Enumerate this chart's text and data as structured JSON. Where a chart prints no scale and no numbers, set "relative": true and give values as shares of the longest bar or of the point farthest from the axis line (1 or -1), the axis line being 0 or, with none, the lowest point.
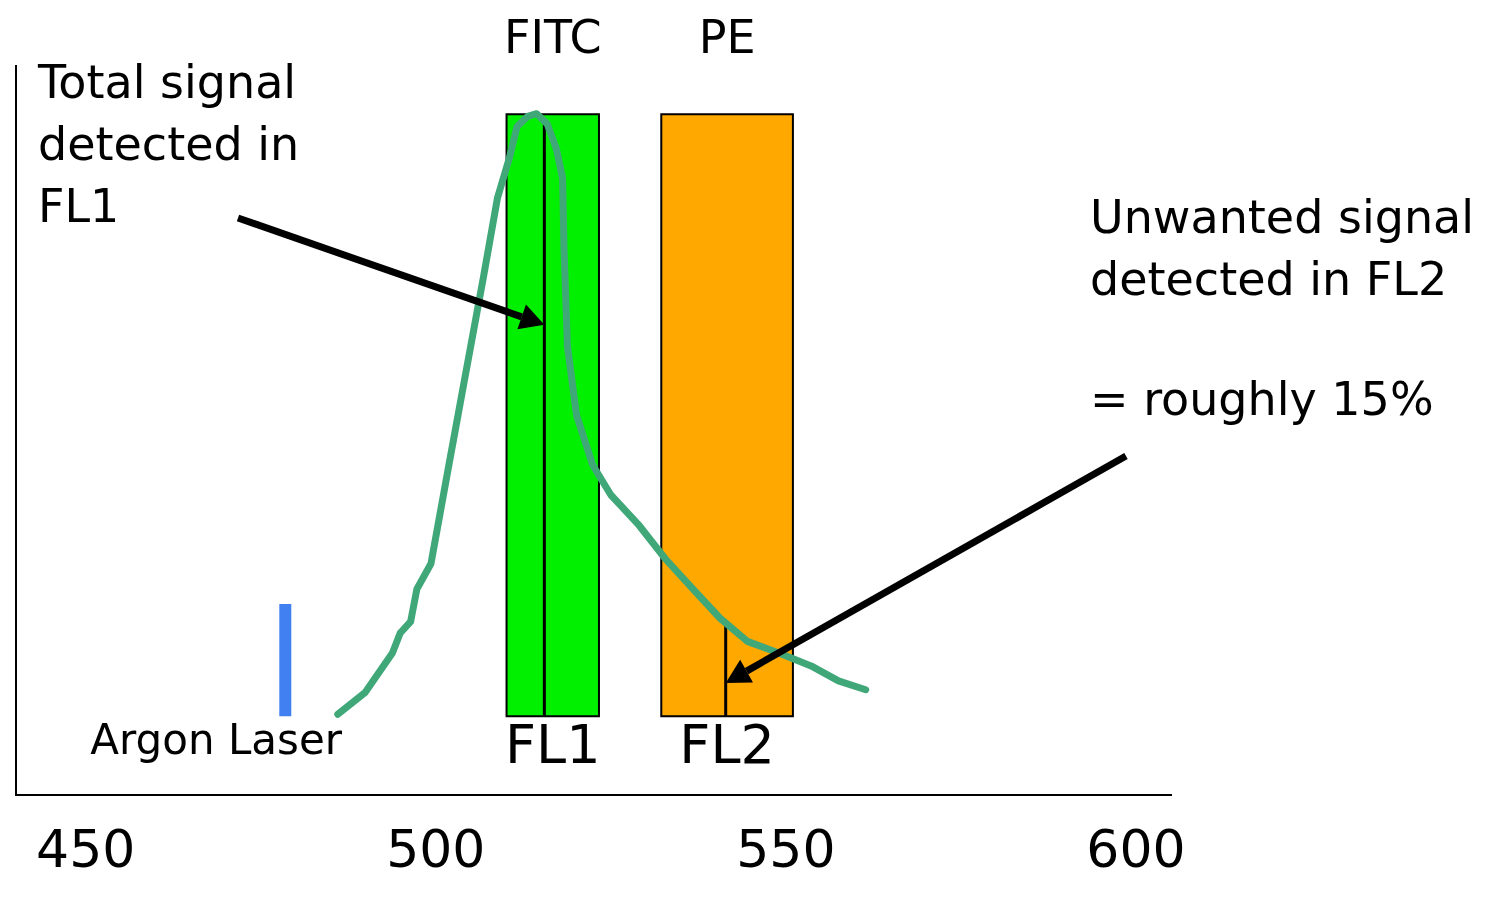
{
  "chart_data": {
    "type": "line",
    "relative": true,
    "x": [
      486.0,
      489.9,
      493.8,
      494.9,
      496.4,
      497.3,
      499.3,
      501.6,
      504.2,
      506.8,
      508.8,
      510.5,
      511.6,
      513.1,
      514.4,
      515.9,
      517.2,
      518.1,
      518.3,
      518.8,
      520.1,
      522.4,
      525.0,
      528.9,
      532.8,
      536.7,
      540.6,
      544.5,
      549.7,
      553.6,
      557.5,
      561.4
    ],
    "series": [
      {
        "color": "#40a878",
        "values": [
          0.118,
          0.15,
          0.208,
          0.237,
          0.254,
          0.302,
          0.339,
          0.469,
          0.615,
          0.76,
          0.876,
          0.935,
          0.981,
          0.996,
          1.0,
          0.985,
          0.949,
          0.906,
          0.804,
          0.658,
          0.557,
          0.484,
          0.44,
          0.397,
          0.346,
          0.302,
          0.259,
          0.225,
          0.205,
          0.189,
          0.167,
          0.154
        ]
      }
    ],
    "xlim": [
      440,
      605
    ],
    "xticks": [
      450,
      500,
      550,
      600
    ],
    "grid": false,
    "legend": false,
    "marker": "none",
    "line_style": "solid",
    "bands": [
      {
        "axis": "x",
        "from": 510.1,
        "to": 523.3,
        "label": "FL1",
        "color": "#00f000"
      },
      {
        "axis": "x",
        "from": 532.2,
        "to": 551.0,
        "label": "FL2",
        "color": "#ffa800"
      }
    ],
    "ref_lines": [
      {
        "axis": "x",
        "value": 515.5,
        "color": "#000000"
      },
      {
        "axis": "x",
        "value": 541.4,
        "color": "#000000"
      },
      {
        "axis": "x",
        "value": 478.5,
        "label": "Argon Laser",
        "color": "#4080f0"
      }
    ],
    "annotations": [
      "Total signal detected in FL1",
      "Unwanted signal detected in FL2",
      "= roughly 15%",
      "FITC",
      "PE"
    ]
  }
}
